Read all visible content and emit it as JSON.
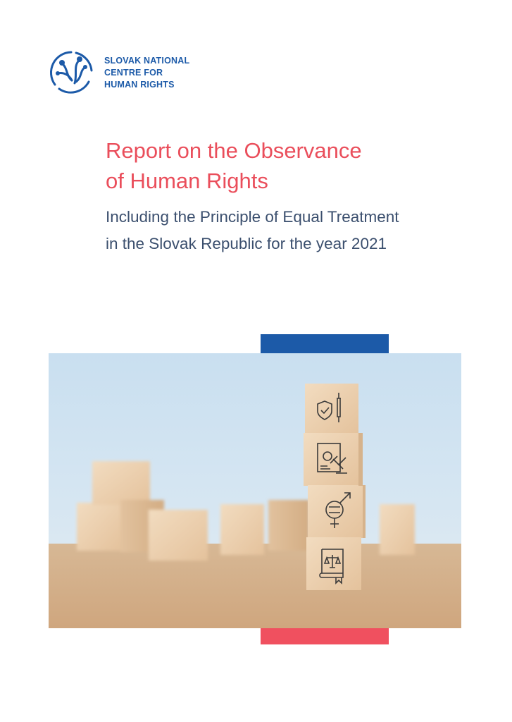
{
  "organization": {
    "name_lines": [
      "SLOVAK NATIONAL",
      "CENTRE FOR",
      "HUMAN RIGHTS"
    ],
    "logo_icon": "globe-people-hands-icon",
    "brand_color": "#1c5aa8"
  },
  "report": {
    "title_lines": [
      "Report on the Observance",
      "of Human Rights"
    ],
    "subtitle_lines": [
      "Including the Principle of Equal Treatment",
      "in the Slovak Republic for the year 2021"
    ],
    "title_color": "#ea4e5b",
    "subtitle_color": "#3b4f6e"
  },
  "cover_image": {
    "subject": "wooden-blocks-photo",
    "block_icons": [
      "shield-syringe-icon",
      "document-gavel-icon",
      "gender-equality-icon",
      "law-book-scales-icon"
    ]
  },
  "accents": {
    "top_bar_color": "#1c5aa8",
    "bottom_bar_color": "#f0505f"
  }
}
